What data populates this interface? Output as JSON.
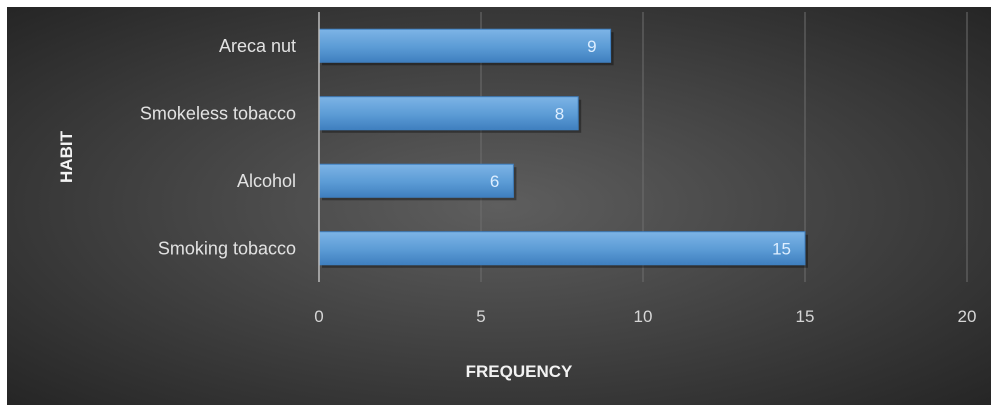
{
  "chart_data": {
    "type": "bar",
    "orientation": "horizontal",
    "categories": [
      "Smoking tobacco",
      "Alcohol",
      "Smokeless tobacco",
      "Areca nut"
    ],
    "values": [
      15,
      6,
      8,
      9
    ],
    "data_labels": [
      "15",
      "6",
      "8",
      "9"
    ],
    "xlabel": "FREQUENCY",
    "ylabel": "HABIT",
    "xlim": [
      0,
      20
    ],
    "xticks": [
      0,
      5,
      10,
      15,
      20
    ],
    "xtick_labels": [
      "0",
      "5",
      "10",
      "15",
      "20"
    ],
    "grid": "vertical",
    "legend": "none",
    "colors": {
      "bar": "#5b9bd5",
      "bar_light": "#7db4e6",
      "bar_dark": "#3f7fbf",
      "background_center": "#5e5e5e",
      "background_edge": "#262626",
      "gridline": "#6e6e6e",
      "axis_line": "#bdbdbd"
    }
  }
}
